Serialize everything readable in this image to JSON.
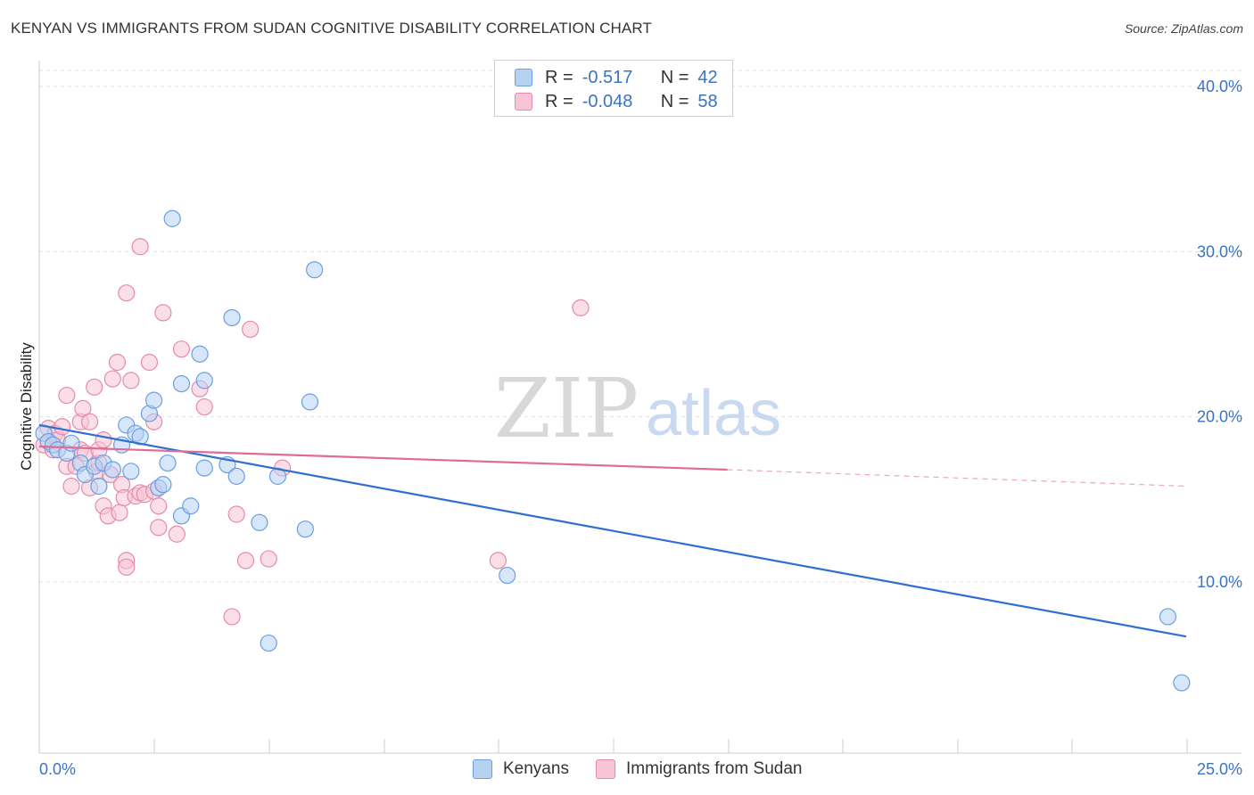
{
  "title": "KENYAN VS IMMIGRANTS FROM SUDAN COGNITIVE DISABILITY CORRELATION CHART",
  "source": "Source: ZipAtlas.com",
  "watermark": {
    "zip": "ZIP",
    "atlas": "atlas"
  },
  "legend": {
    "rows": [
      {
        "r_label": "R =",
        "r_value": "-0.517",
        "n_label": "N =",
        "n_value": "42",
        "color": "#6a9fe0",
        "fill": "#b7d1f3"
      },
      {
        "r_label": "R =",
        "r_value": "-0.048",
        "n_label": "N =",
        "n_value": "58",
        "color": "#e88aa7",
        "fill": "#f7c5d5"
      }
    ]
  },
  "bottom_legend": [
    {
      "label": "Kenyans",
      "fill": "#b7d1f3",
      "color": "#6a9fe0"
    },
    {
      "label": "Immigrants from Sudan",
      "fill": "#f7c5d5",
      "color": "#e88aa7"
    }
  ],
  "chart_data": {
    "type": "scatter",
    "title": "KENYAN VS IMMIGRANTS FROM SUDAN COGNITIVE DISABILITY CORRELATION CHART",
    "xlabel": "",
    "ylabel": "Cognitive Disability",
    "xlim": [
      0,
      25
    ],
    "ylim": [
      0,
      40
    ],
    "x_tick_labels": [
      "0.0%",
      "25.0%"
    ],
    "y_tick_labels": [
      "10.0%",
      "20.0%",
      "30.0%",
      "40.0%"
    ],
    "y_ticks": [
      10,
      20,
      30,
      40
    ],
    "series": [
      {
        "name": "Kenyans",
        "color": "#6a9fe0",
        "fill": "#b7d1f3",
        "trend": {
          "x": [
            0,
            25
          ],
          "y": [
            19.5,
            6.7
          ],
          "color": "#2e6fd0"
        },
        "points": [
          [
            0.1,
            19.0
          ],
          [
            0.2,
            18.5
          ],
          [
            0.3,
            18.3
          ],
          [
            0.4,
            18.0
          ],
          [
            0.6,
            17.8
          ],
          [
            0.7,
            18.4
          ],
          [
            0.9,
            17.2
          ],
          [
            1.0,
            16.5
          ],
          [
            1.2,
            17.0
          ],
          [
            1.3,
            15.8
          ],
          [
            1.4,
            17.2
          ],
          [
            1.6,
            16.8
          ],
          [
            1.8,
            18.3
          ],
          [
            1.9,
            19.5
          ],
          [
            2.0,
            16.7
          ],
          [
            2.1,
            19.0
          ],
          [
            2.2,
            18.8
          ],
          [
            2.4,
            20.2
          ],
          [
            2.5,
            21.0
          ],
          [
            2.6,
            15.7
          ],
          [
            2.7,
            15.9
          ],
          [
            2.8,
            17.2
          ],
          [
            2.9,
            32.0
          ],
          [
            3.1,
            22.0
          ],
          [
            3.1,
            14.0
          ],
          [
            3.3,
            14.6
          ],
          [
            3.5,
            23.8
          ],
          [
            3.6,
            22.2
          ],
          [
            3.6,
            16.9
          ],
          [
            4.1,
            17.1
          ],
          [
            4.2,
            26.0
          ],
          [
            4.3,
            16.4
          ],
          [
            4.8,
            13.6
          ],
          [
            5.0,
            6.3
          ],
          [
            5.2,
            16.4
          ],
          [
            5.8,
            13.2
          ],
          [
            5.9,
            20.9
          ],
          [
            6.0,
            28.9
          ],
          [
            10.2,
            10.4
          ],
          [
            24.6,
            7.9
          ],
          [
            24.9,
            3.9
          ]
        ]
      },
      {
        "name": "Immigrants from Sudan",
        "color": "#e88aa7",
        "fill": "#f7c5d5",
        "trend": {
          "x": [
            0,
            15
          ],
          "y": [
            18.2,
            16.8
          ],
          "dash_x": [
            15,
            25
          ],
          "dash_y": [
            16.8,
            15.8
          ],
          "color": "#e06b95"
        },
        "points": [
          [
            0.1,
            18.3
          ],
          [
            0.2,
            19.3
          ],
          [
            0.3,
            18.0
          ],
          [
            0.35,
            19.0
          ],
          [
            0.4,
            18.6
          ],
          [
            0.5,
            19.4
          ],
          [
            0.6,
            17.0
          ],
          [
            0.6,
            21.3
          ],
          [
            0.7,
            15.8
          ],
          [
            0.8,
            17.0
          ],
          [
            0.9,
            18.0
          ],
          [
            0.9,
            19.7
          ],
          [
            0.95,
            20.5
          ],
          [
            1.0,
            17.8
          ],
          [
            1.1,
            15.7
          ],
          [
            1.1,
            19.7
          ],
          [
            1.2,
            21.8
          ],
          [
            1.25,
            16.7
          ],
          [
            1.3,
            17.2
          ],
          [
            1.3,
            18.0
          ],
          [
            1.4,
            18.6
          ],
          [
            1.4,
            14.6
          ],
          [
            1.5,
            14.0
          ],
          [
            1.55,
            16.5
          ],
          [
            1.6,
            22.3
          ],
          [
            1.7,
            23.3
          ],
          [
            1.75,
            14.2
          ],
          [
            1.8,
            15.9
          ],
          [
            1.85,
            15.1
          ],
          [
            1.9,
            27.5
          ],
          [
            1.9,
            11.3
          ],
          [
            1.9,
            10.9
          ],
          [
            2.0,
            22.2
          ],
          [
            2.1,
            15.2
          ],
          [
            2.2,
            30.3
          ],
          [
            2.2,
            15.4
          ],
          [
            2.3,
            15.3
          ],
          [
            2.4,
            23.3
          ],
          [
            2.5,
            19.7
          ],
          [
            2.5,
            15.5
          ],
          [
            2.6,
            14.6
          ],
          [
            2.6,
            13.3
          ],
          [
            2.7,
            26.3
          ],
          [
            3.0,
            12.9
          ],
          [
            3.1,
            24.1
          ],
          [
            3.5,
            21.7
          ],
          [
            3.6,
            20.6
          ],
          [
            4.2,
            7.9
          ],
          [
            4.3,
            14.1
          ],
          [
            4.5,
            11.3
          ],
          [
            4.6,
            25.3
          ],
          [
            5.0,
            11.4
          ],
          [
            5.3,
            16.9
          ],
          [
            10.0,
            11.3
          ],
          [
            11.8,
            26.6
          ]
        ]
      }
    ]
  }
}
